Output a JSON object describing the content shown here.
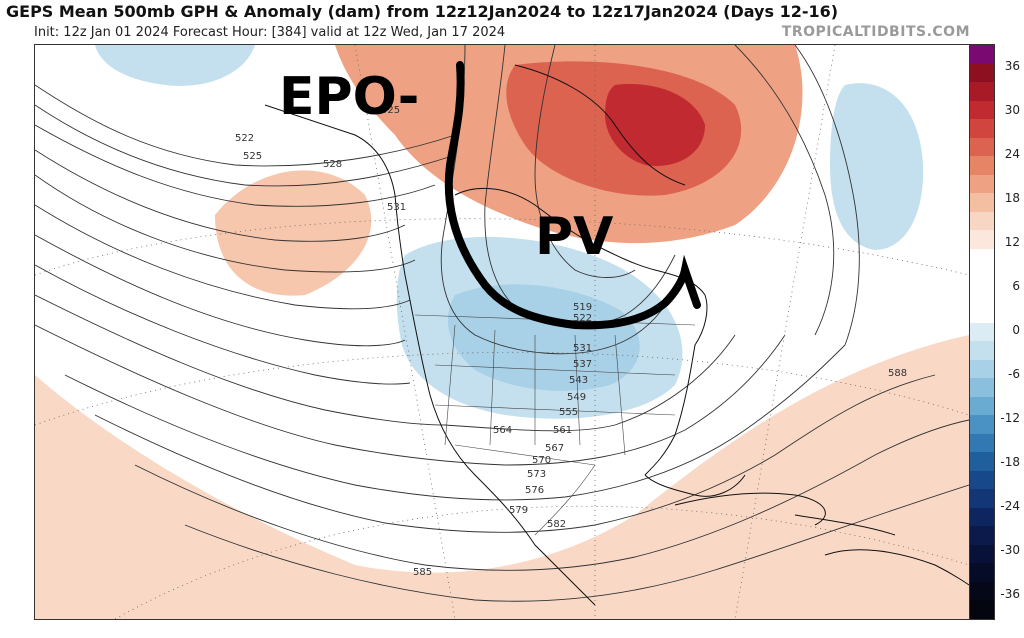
{
  "header": {
    "title": "GEPS Mean 500mb GPH & Anomaly (dam) from 12z12Jan2024 to 12z17Jan2024 (Days 12-16)",
    "subtitle": "Init: 12z Jan 01 2024   Forecast Hour: [384]   valid at 12z Wed, Jan 17 2024",
    "credit": "TROPICALTIDBITS.COM"
  },
  "annotations": {
    "epo": "EPO-",
    "pv": "PV"
  },
  "contour_labels": [
    "522",
    "525",
    "525",
    "528",
    "531",
    "519",
    "522",
    "531",
    "537",
    "543",
    "549",
    "555",
    "564",
    "561",
    "567",
    "570",
    "573",
    "576",
    "579",
    "582",
    "585",
    "588"
  ],
  "colorbar": {
    "ticks": [
      "36",
      "30",
      "24",
      "18",
      "12",
      "6",
      "0",
      "-6",
      "-12",
      "-18",
      "-24",
      "-30",
      "-36"
    ],
    "colors": [
      "#7a0a72",
      "#8c1020",
      "#a81a26",
      "#c02a30",
      "#d0463e",
      "#dc6350",
      "#e68466",
      "#eea283",
      "#f4bea3",
      "#f8d6c4",
      "#fbe7dc",
      "#ffffff",
      "#ffffff",
      "#ffffff",
      "#ffffff",
      "#dcecf4",
      "#c4e0ee",
      "#a8d0e6",
      "#8ac0de",
      "#6aabd2",
      "#4a92c4",
      "#3279b4",
      "#1f5f9c",
      "#17488a",
      "#123676",
      "#0e2660",
      "#0b1a4a",
      "#081238",
      "#060c28",
      "#040818",
      "#03050f"
    ]
  }
}
